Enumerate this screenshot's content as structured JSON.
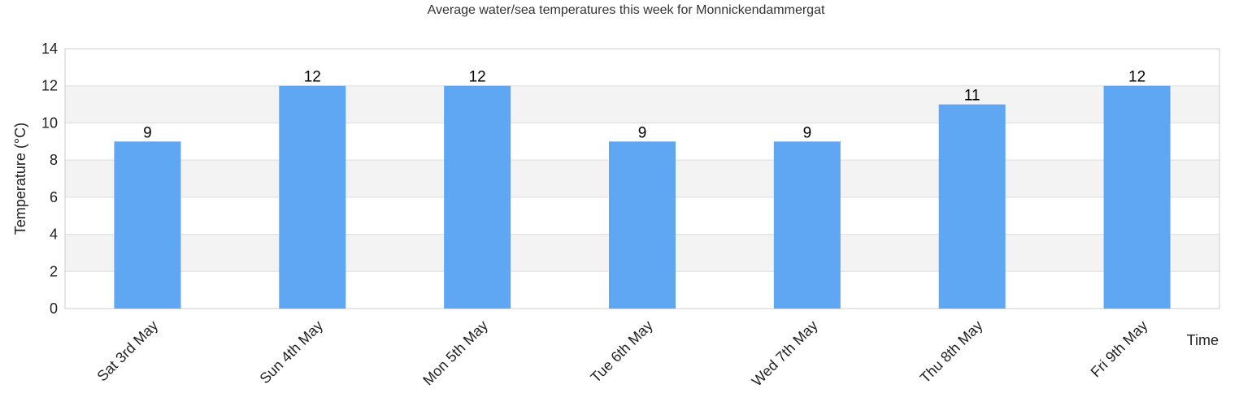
{
  "chart_data": {
    "type": "bar",
    "title": "Average water/sea temperatures this week for Monnickendammergat",
    "xlabel": "Time",
    "ylabel": "Temperature (°C)",
    "categories": [
      "Sat 3rd May",
      "Sun 4th May",
      "Mon 5th May",
      "Tue 6th May",
      "Wed 7th May",
      "Thu 8th May",
      "Fri 9th May"
    ],
    "values": [
      9,
      12,
      12,
      9,
      9,
      11,
      12
    ],
    "ylim": [
      0,
      14
    ],
    "yticks": [
      "0",
      "2",
      "4",
      "6",
      "8",
      "10",
      "12",
      "14"
    ],
    "grid": true,
    "colors": {
      "bar": "#60a7f3",
      "band": "#f3f3f3",
      "grid": "#dddddd",
      "axis": "#cccccc"
    }
  }
}
